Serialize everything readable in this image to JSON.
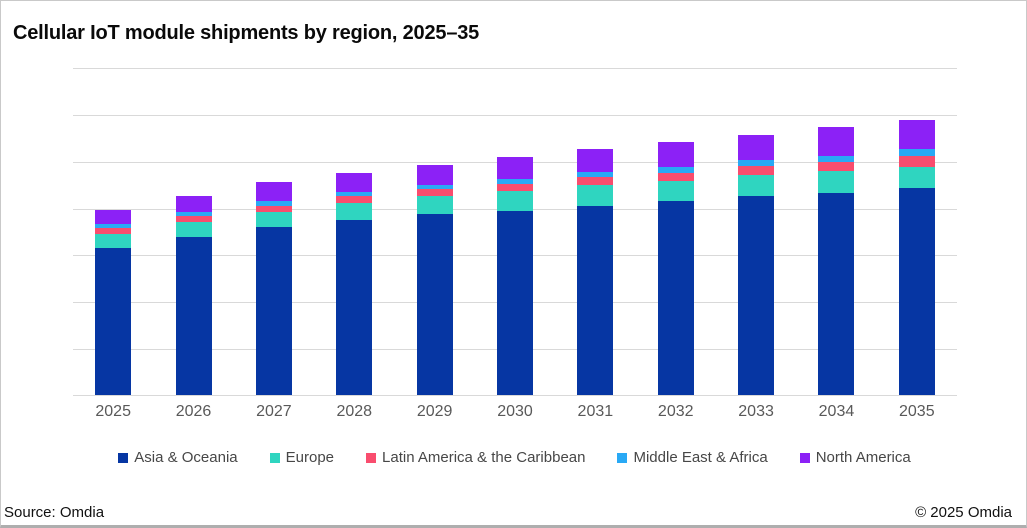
{
  "header": {
    "title": "Cellular IoT module shipments by region, 2025–35"
  },
  "footer": {
    "source": "Source: Omdia",
    "copyright": "© 2025 Omdia"
  },
  "style": {
    "gridline_color": "#d9d9d9",
    "axis_label_color": "#595959",
    "legend_text_color": "#474747",
    "title_color": "#0a0a0a"
  },
  "chart_data": {
    "type": "bar",
    "stacked": true,
    "title": "Cellular IoT module shipments by region, 2025–35",
    "categories": [
      "2025",
      "2026",
      "2027",
      "2028",
      "2029",
      "2030",
      "2031",
      "2032",
      "2033",
      "2034",
      "2035"
    ],
    "xlabel": "",
    "ylabel": "",
    "ylim": [
      0,
      700
    ],
    "gridline_step": 100,
    "y_axis_labels_visible": false,
    "grid": true,
    "legend_position": "bottom",
    "series": [
      {
        "name": "Asia & Oceania",
        "color": "#0636a3",
        "values": [
          314,
          337,
          359,
          373,
          386,
          392,
          403,
          414,
          425,
          431,
          442
        ]
      },
      {
        "name": "Europe",
        "color": "#2fd5c0",
        "values": [
          30,
          32,
          32,
          36,
          38,
          43,
          46,
          43,
          45,
          47,
          45
        ]
      },
      {
        "name": "Latin America & the Caribbean",
        "color": "#f94d6e",
        "values": [
          13,
          13,
          13,
          15,
          15,
          16,
          17,
          17,
          19,
          19,
          23
        ]
      },
      {
        "name": "Middle East & Africa",
        "color": "#29a9f5",
        "values": [
          9,
          9,
          9,
          9,
          9,
          11,
          11,
          13,
          13,
          13,
          15
        ]
      },
      {
        "name": "North America",
        "color": "#8c21f6",
        "values": [
          28,
          34,
          41,
          41,
          43,
          47,
          49,
          53,
          53,
          62,
          62
        ]
      }
    ],
    "totals_estimated": [
      394,
      425,
      454,
      474,
      491,
      509,
      526,
      540,
      555,
      572,
      587
    ]
  }
}
